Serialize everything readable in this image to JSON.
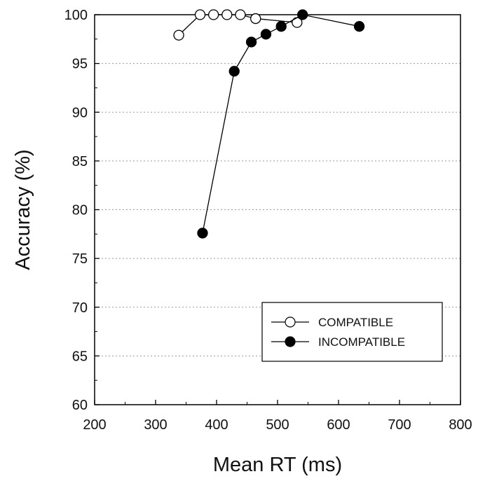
{
  "chart_data": {
    "type": "line",
    "xlabel": "Mean RT (ms)",
    "ylabel": "Accuracy (%)",
    "xlim": [
      200,
      800
    ],
    "ylim": [
      60,
      100
    ],
    "x_ticks": [
      "200",
      "300",
      "400",
      "500",
      "600",
      "700",
      "800"
    ],
    "y_ticks": [
      "60",
      "65",
      "70",
      "75",
      "80",
      "85",
      "90",
      "95",
      "100"
    ],
    "grid": "horizontal dotted",
    "legend_position": "bottom-right",
    "series": [
      {
        "name": "COMPATIBLE",
        "marker": "open-circle",
        "color": "#000000",
        "fill": "#ffffff",
        "points": [
          [
            338,
            97.9
          ],
          [
            373,
            100
          ],
          [
            395,
            100
          ],
          [
            417,
            100
          ],
          [
            439,
            100
          ],
          [
            464,
            99.6
          ],
          [
            532,
            99.2
          ]
        ]
      },
      {
        "name": "INCOMPATIBLE",
        "marker": "filled-circle",
        "color": "#000000",
        "fill": "#000000",
        "points": [
          [
            377,
            77.6
          ],
          [
            429,
            94.2
          ],
          [
            457,
            97.2
          ],
          [
            481,
            98.0
          ],
          [
            506,
            98.8
          ],
          [
            541,
            100
          ],
          [
            634,
            98.8
          ]
        ]
      }
    ]
  }
}
